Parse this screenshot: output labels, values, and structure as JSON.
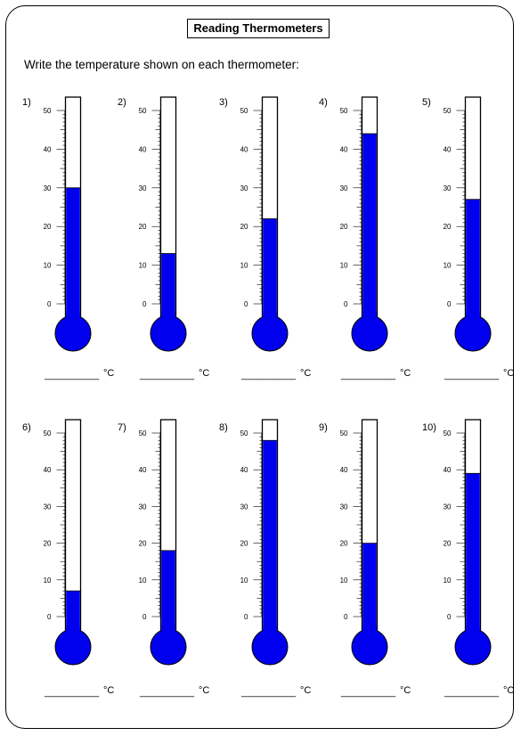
{
  "worksheet": {
    "title": "Reading Thermometers",
    "instruction": "Write the temperature shown on each thermometer:"
  },
  "style": {
    "mercury_color": "#0000ee",
    "outline_color": "#000000"
  },
  "scale": {
    "min": 0,
    "max": 50,
    "tick_labels": [
      "0",
      "10",
      "20",
      "30",
      "40",
      "50"
    ]
  },
  "answer_blank": "__________",
  "unit": "°C",
  "thermometers": [
    {
      "label": "1)",
      "value": 30
    },
    {
      "label": "2)",
      "value": 13
    },
    {
      "label": "3)",
      "value": 22
    },
    {
      "label": "4)",
      "value": 44
    },
    {
      "label": "5)",
      "value": 27
    },
    {
      "label": "6)",
      "value": 7
    },
    {
      "label": "7)",
      "value": 18
    },
    {
      "label": "8)",
      "value": 48
    },
    {
      "label": "9)",
      "value": 20
    },
    {
      "label": "10)",
      "value": 39
    }
  ]
}
